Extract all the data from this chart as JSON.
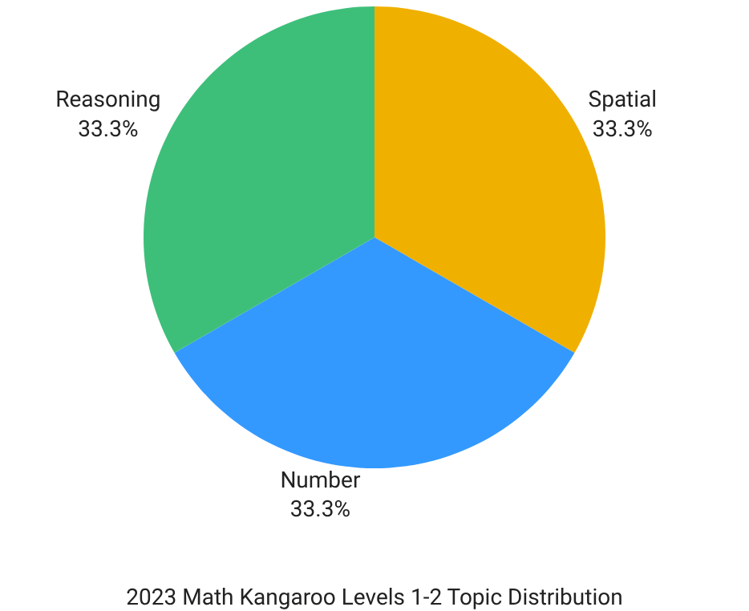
{
  "chart_data": {
    "type": "pie",
    "title": "2023 Math Kangaroo Levels 1-2 Topic Distribution",
    "categories": [
      "Spatial",
      "Number",
      "Reasoning"
    ],
    "values": [
      33.3,
      33.3,
      33.3
    ],
    "value_labels": [
      "33.3%",
      "33.3%",
      "33.3%"
    ],
    "colors": [
      "#f0b000",
      "#3399ff",
      "#3dbf7a"
    ],
    "legend": false
  }
}
